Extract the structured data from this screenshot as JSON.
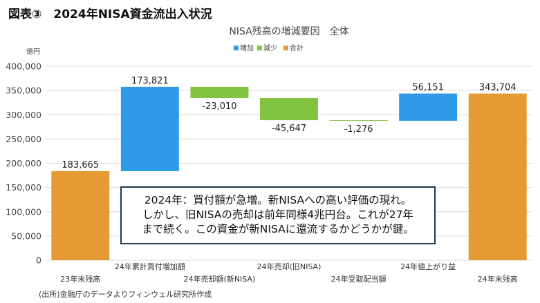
{
  "figure_heading": "図表③　2024年NISA資金流出入状況",
  "chart_data": {
    "type": "bar",
    "title": "NISA残高の増減要因　全体",
    "ylabel": "億円",
    "ylim": [
      0,
      400000
    ],
    "yticks": [
      "0",
      "50,000",
      "100,000",
      "150,000",
      "200,000",
      "250,000",
      "300,000",
      "350,000",
      "400,000"
    ],
    "categories": [
      "23年末残高",
      "24年累計買付増加額",
      "24年売却額(新NISA)",
      "24年売却(旧NISA)",
      "24年受取配当額",
      "24年値上がり益",
      "24年末残高"
    ],
    "bars": [
      {
        "category": "23年末残高",
        "kind": "total",
        "start": 0,
        "end": 183665,
        "label": "183,665"
      },
      {
        "category": "24年累計買付増加額",
        "kind": "increase",
        "start": 183665,
        "end": 357486,
        "label": "173,821"
      },
      {
        "category": "24年売却額(新NISA)",
        "kind": "decrease",
        "start": 357486,
        "end": 334476,
        "label": "-23,010"
      },
      {
        "category": "24年売却(旧NISA)",
        "kind": "decrease",
        "start": 334476,
        "end": 288829,
        "label": "-45,647"
      },
      {
        "category": "24年受取配当額",
        "kind": "decrease",
        "start": 288829,
        "end": 287553,
        "label": "-1,276"
      },
      {
        "category": "24年値上がり益",
        "kind": "increase",
        "start": 287553,
        "end": 343704,
        "label": "56,151"
      },
      {
        "category": "24年末残高",
        "kind": "total",
        "start": 0,
        "end": 343704,
        "label": "343,704"
      }
    ],
    "legend": [
      {
        "name": "増加",
        "color": "#2f9be8"
      },
      {
        "name": "減少",
        "color": "#82c341"
      },
      {
        "name": "合計",
        "color": "#e59a34"
      }
    ],
    "legend_position": "top-center",
    "grid": true
  },
  "annotation": [
    "2024年：買付額が急増。新NISAへの高い評価の現れ。",
    "しかし、旧NISAの売却は前年同様4兆円台。これが27年",
    "まで続く。この資金が新NISAに還流するかどうかが鍵。"
  ],
  "source": "(出所)金融庁のデータよりフィンウェル研究所作成"
}
